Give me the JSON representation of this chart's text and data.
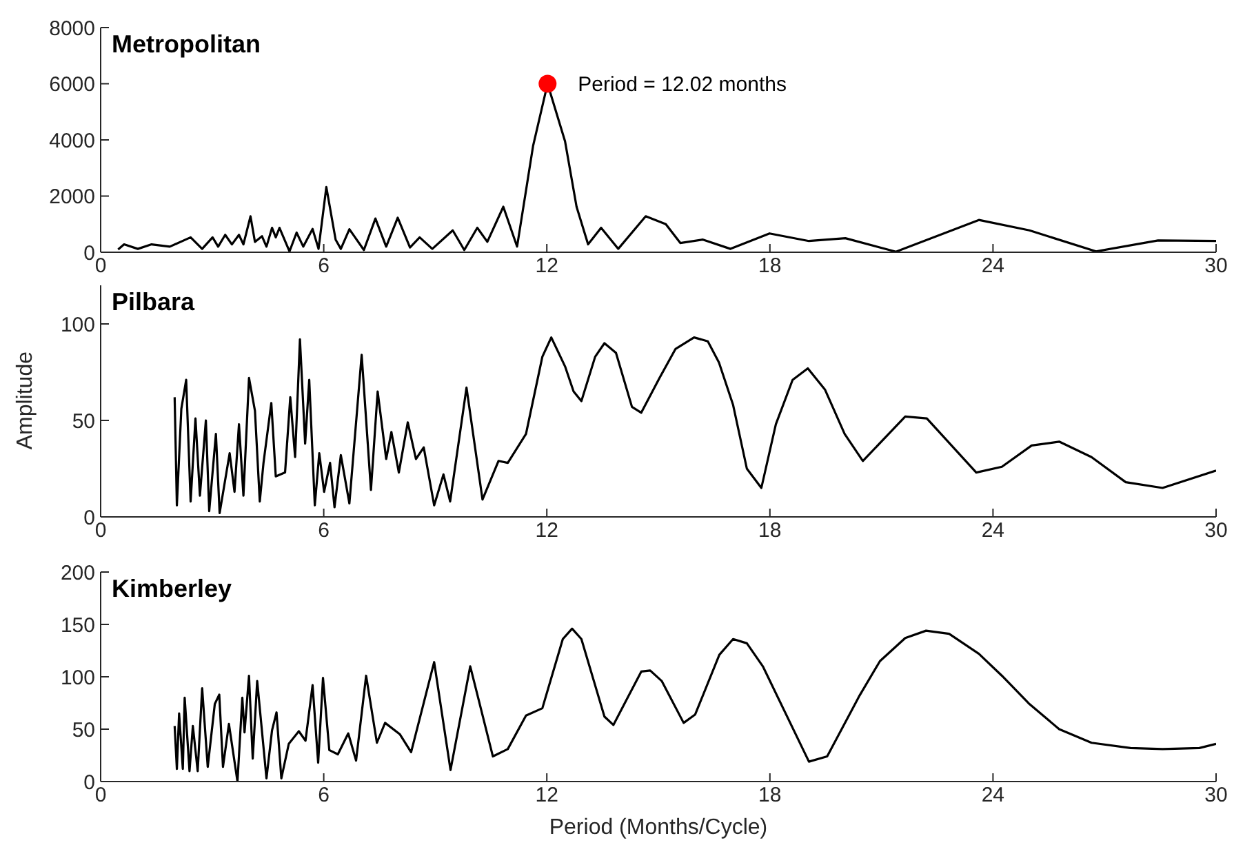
{
  "chart_data": [
    {
      "type": "line",
      "title": "Metropolitan",
      "xlim": [
        0,
        30
      ],
      "xticks": [
        0,
        6,
        12,
        18,
        24,
        30
      ],
      "ylim": [
        0,
        8000
      ],
      "yticks": [
        0,
        2000,
        4000,
        6000,
        8000
      ],
      "annotations": [
        {
          "text": "Period = 12.02 months",
          "x": 12.02,
          "y": 6000
        }
      ],
      "series": [
        {
          "color": "#000000",
          "x": [
            0.47,
            0.63,
            1.0,
            1.37,
            1.86,
            2.42,
            2.73,
            3.01,
            3.16,
            3.35,
            3.53,
            3.72,
            3.84,
            4.03,
            4.15,
            4.34,
            4.46,
            4.61,
            4.71,
            4.81,
            5.08,
            5.27,
            5.45,
            5.7,
            5.86,
            6.07,
            6.32,
            6.46,
            6.69,
            7.08,
            7.39,
            7.68,
            7.99,
            8.32,
            8.58,
            8.92,
            9.47,
            9.78,
            10.13,
            10.4,
            10.83,
            11.2,
            11.63,
            12.02,
            12.49,
            12.8,
            13.11,
            13.46,
            13.92,
            14.66,
            15.2,
            15.59,
            16.2,
            16.94,
            17.99,
            19.05,
            20.03,
            21.39,
            23.62,
            24.98,
            26.77,
            28.44,
            30
          ],
          "values": [
            100,
            280,
            120,
            280,
            200,
            530,
            120,
            530,
            200,
            620,
            280,
            620,
            280,
            1280,
            370,
            570,
            200,
            870,
            530,
            870,
            30,
            700,
            200,
            830,
            120,
            2320,
            450,
            120,
            820,
            80,
            1200,
            200,
            1230,
            170,
            530,
            120,
            780,
            80,
            870,
            370,
            1620,
            200,
            3780,
            6000,
            3950,
            1620,
            280,
            870,
            120,
            1280,
            1000,
            330,
            450,
            120,
            670,
            400,
            500,
            20,
            1150,
            780,
            30,
            420,
            400
          ]
        },
        {
          "type": "scatter",
          "color": "#ff0000",
          "marker": "circle",
          "x": [
            12.02
          ],
          "values": [
            6000
          ]
        }
      ]
    },
    {
      "type": "line",
      "title": "Pilbara",
      "ylabel": "Amplitude",
      "xlim": [
        0,
        30
      ],
      "xticks": [
        0,
        6,
        12,
        18,
        24,
        30
      ],
      "ylim": [
        0,
        120
      ],
      "yticks": [
        0,
        50,
        100
      ],
      "series": [
        {
          "color": "#000000",
          "x": [
            1.99,
            2.05,
            2.17,
            2.3,
            2.42,
            2.55,
            2.67,
            2.83,
            2.92,
            3.1,
            3.2,
            3.47,
            3.6,
            3.72,
            3.84,
            3.99,
            4.15,
            4.28,
            4.38,
            4.59,
            4.71,
            4.96,
            5.1,
            5.23,
            5.36,
            5.5,
            5.61,
            5.76,
            5.88,
            6.01,
            6.17,
            6.29,
            6.46,
            6.69,
            7.02,
            7.27,
            7.45,
            7.68,
            7.82,
            8.02,
            8.26,
            8.48,
            8.69,
            8.97,
            9.22,
            9.4,
            9.84,
            10.27,
            10.7,
            10.95,
            11.44,
            11.88,
            12.12,
            12.49,
            12.72,
            12.93,
            13.3,
            13.55,
            13.86,
            14.29,
            14.54,
            15.03,
            15.46,
            15.96,
            16.33,
            16.63,
            17.01,
            17.38,
            17.77,
            18.16,
            18.61,
            19.02,
            19.48,
            20.01,
            20.5,
            21.64,
            22.22,
            23.55,
            24.24,
            25.04,
            25.78,
            26.65,
            27.57,
            28.56,
            30
          ],
          "values": [
            62,
            6,
            56,
            71,
            8,
            51,
            11,
            50,
            3,
            43,
            2,
            33,
            13,
            48,
            11,
            72,
            55,
            8,
            28,
            59,
            21,
            23,
            62,
            31,
            92,
            38,
            71,
            6,
            33,
            13,
            28,
            5,
            32,
            7,
            84,
            14,
            65,
            30,
            44,
            23,
            49,
            30,
            36,
            6,
            22,
            8,
            67,
            9,
            29,
            28,
            43,
            83,
            93,
            78,
            65,
            60,
            83,
            90,
            85,
            57,
            54,
            72,
            87,
            93,
            91,
            80,
            58,
            25,
            15,
            48,
            71,
            77,
            66,
            43,
            29,
            52,
            51,
            23,
            26,
            37,
            39,
            31,
            18,
            15,
            24
          ]
        }
      ]
    },
    {
      "type": "line",
      "title": "Kimberley",
      "xlabel": "Period (Months/Cycle)",
      "xlim": [
        0,
        30
      ],
      "xticks": [
        0,
        6,
        12,
        18,
        24,
        30
      ],
      "ylim": [
        0,
        200
      ],
      "yticks": [
        0,
        50,
        100,
        150,
        200
      ],
      "series": [
        {
          "color": "#000000",
          "x": [
            1.99,
            2.05,
            2.11,
            2.21,
            2.26,
            2.39,
            2.48,
            2.61,
            2.73,
            2.88,
            3.07,
            3.19,
            3.29,
            3.45,
            3.68,
            3.81,
            3.87,
            3.99,
            4.09,
            4.21,
            4.46,
            4.61,
            4.73,
            4.86,
            5.06,
            5.33,
            5.51,
            5.7,
            5.85,
            5.98,
            6.15,
            6.38,
            6.66,
            6.87,
            7.14,
            7.43,
            7.65,
            8.05,
            8.35,
            8.97,
            9.41,
            9.94,
            10.55,
            10.95,
            11.44,
            11.88,
            12.43,
            12.68,
            12.93,
            13.55,
            13.79,
            14.54,
            14.78,
            15.09,
            15.68,
            15.99,
            16.64,
            17.01,
            17.38,
            17.81,
            19.05,
            19.54,
            20.41,
            20.96,
            21.64,
            22.2,
            22.82,
            23.62,
            24.24,
            24.98,
            25.78,
            26.65,
            27.7,
            28.56,
            29.55,
            30
          ],
          "values": [
            53,
            12,
            65,
            12,
            80,
            10,
            53,
            10,
            89,
            14,
            74,
            83,
            14,
            55,
            0,
            80,
            47,
            101,
            22,
            96,
            3,
            49,
            66,
            3,
            36,
            48,
            39,
            92,
            18,
            99,
            30,
            26,
            46,
            20,
            101,
            37,
            56,
            45,
            28,
            114,
            11,
            110,
            24,
            31,
            63,
            70,
            136,
            146,
            136,
            62,
            54,
            105,
            106,
            96,
            56,
            64,
            121,
            136,
            132,
            110,
            19,
            24,
            82,
            115,
            137,
            144,
            141,
            122,
            101,
            74,
            50,
            37,
            32,
            31,
            32,
            36
          ]
        }
      ]
    }
  ]
}
